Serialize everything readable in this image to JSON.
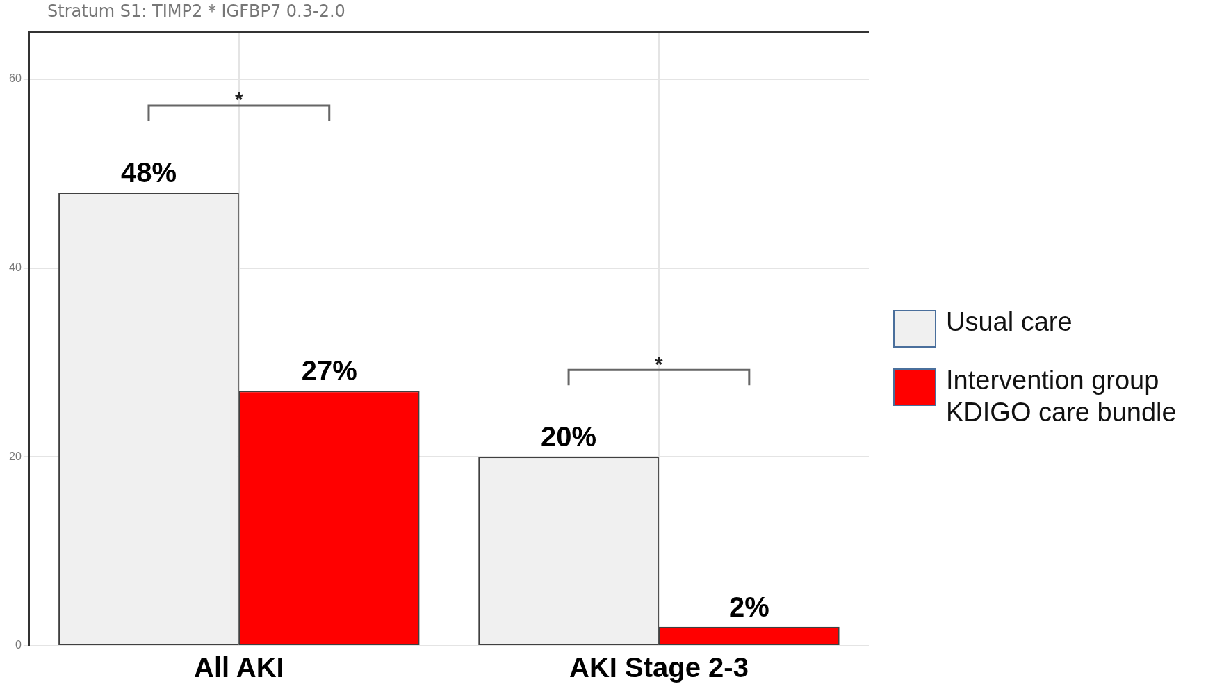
{
  "chart_data": {
    "type": "bar",
    "title": "Stratum S1: TIMP2 * IGFBP7 0.3-2.0",
    "categories": [
      "All AKI",
      "AKI Stage 2-3"
    ],
    "series": [
      {
        "name": "Usual care",
        "color": "#f0f0f0",
        "values": [
          48,
          20
        ],
        "value_labels": [
          "48%",
          "20%"
        ]
      },
      {
        "name": "Intervention group KDIGO care bundle",
        "color": "#ff0000",
        "values": [
          27,
          2
        ],
        "value_labels": [
          "27%",
          "2%"
        ]
      }
    ],
    "ylim": [
      0,
      65
    ],
    "yticks": [
      0,
      20,
      40,
      60
    ],
    "grid": true,
    "legend": "right",
    "annotations": [
      "*",
      "*"
    ]
  }
}
